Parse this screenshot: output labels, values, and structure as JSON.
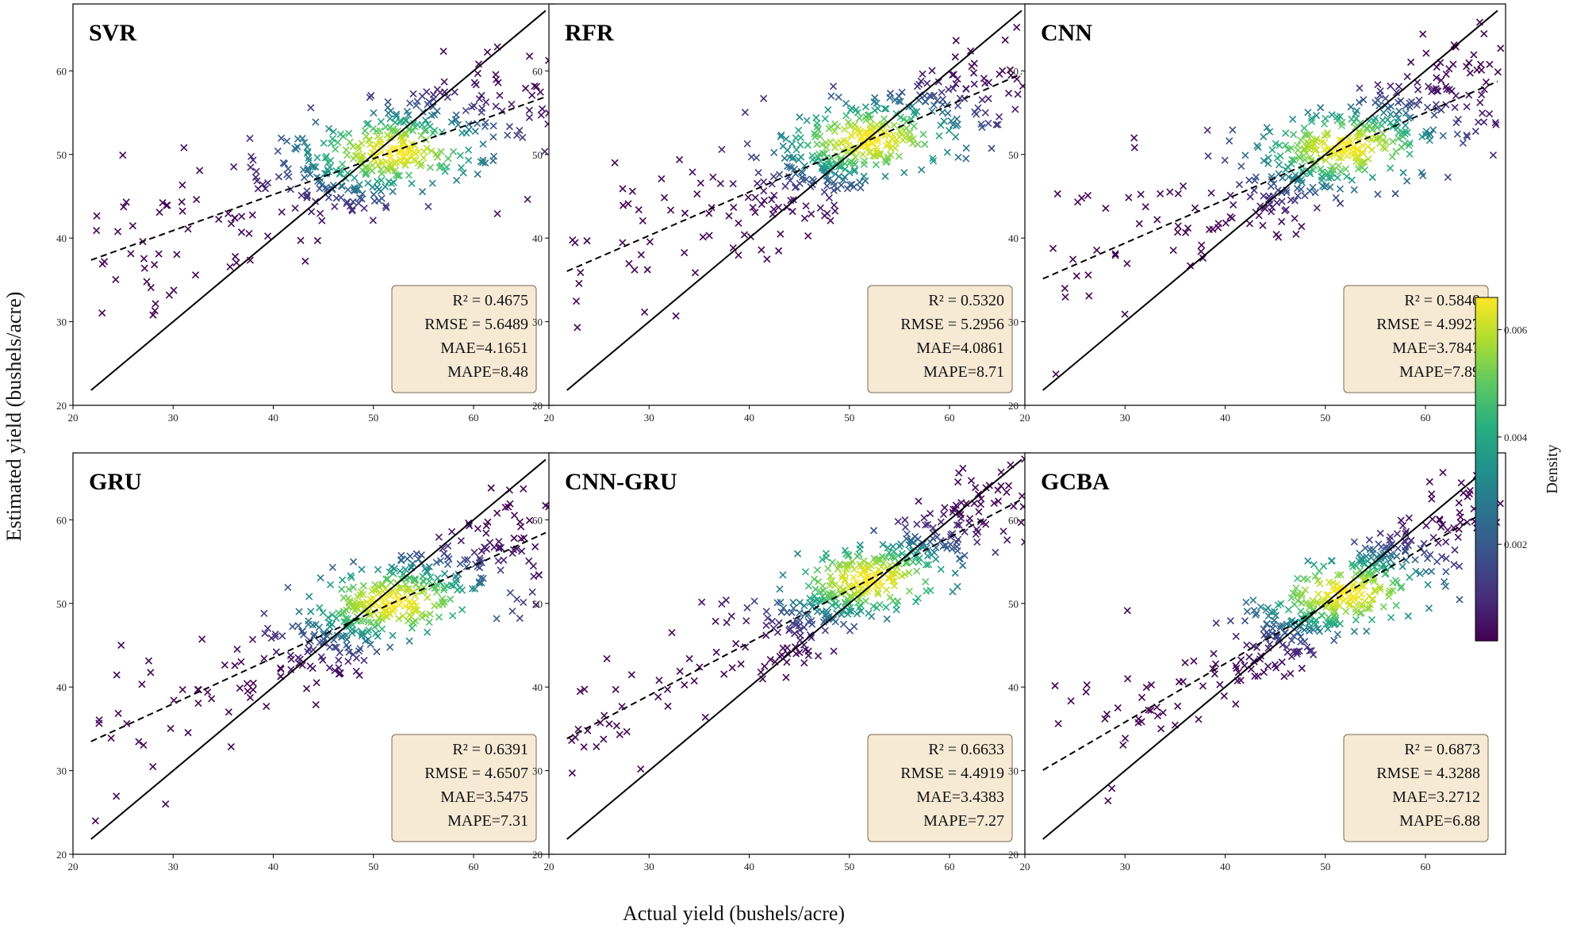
{
  "figure": {
    "xlabel": "Actual yield (bushels/acre)",
    "ylabel": "Estimated yield (bushels/acre)",
    "colorbar": {
      "label": "Density",
      "ticks": [
        "0.002",
        "0.004",
        "0.006"
      ],
      "tick_values": [
        0.002,
        0.004,
        0.006
      ],
      "range": [
        0.0002,
        0.0066
      ],
      "colormap": "viridis"
    }
  },
  "chart_data": [
    {
      "type": "scatter",
      "title": "SVR",
      "xlim": [
        20,
        68
      ],
      "ylim": [
        20,
        68
      ],
      "xticks": [
        20,
        30,
        40,
        50,
        60
      ],
      "yticks": [
        20,
        30,
        40,
        50,
        60
      ],
      "fit": {
        "slope": 0.43,
        "intercept": 28.0
      },
      "stats": {
        "r2": "R² = 0.4675",
        "rmse": "RMSE = 5.6489",
        "mae": "MAE=4.1651",
        "mape": "MAPE=8.48"
      },
      "marker": "x",
      "identity_line": true
    },
    {
      "type": "scatter",
      "title": "RFR",
      "xlim": [
        20,
        68
      ],
      "ylim": [
        20,
        68
      ],
      "xticks": [
        20,
        30,
        40,
        50,
        60
      ],
      "yticks": [
        20,
        30,
        40,
        50,
        60
      ],
      "fit": {
        "slope": 0.52,
        "intercept": 24.7
      },
      "stats": {
        "r2": "R² = 0.5320",
        "rmse": "RMSE = 5.2956",
        "mae": "MAE=4.0861",
        "mape": "MAPE=8.71"
      },
      "marker": "x",
      "identity_line": true
    },
    {
      "type": "scatter",
      "title": "CNN",
      "xlim": [
        20,
        68
      ],
      "ylim": [
        20,
        68
      ],
      "xticks": [
        20,
        30,
        40,
        50,
        60
      ],
      "yticks": [
        20,
        30,
        40,
        50,
        60
      ],
      "fit": {
        "slope": 0.52,
        "intercept": 23.8
      },
      "stats": {
        "r2": "R² = 0.5840",
        "rmse": "RMSE = 4.9927",
        "mae": "MAE=3.7847",
        "mape": "MAPE=7.89"
      },
      "marker": "x",
      "identity_line": true
    },
    {
      "type": "scatter",
      "title": "GRU",
      "xlim": [
        20,
        68
      ],
      "ylim": [
        20,
        68
      ],
      "xticks": [
        20,
        30,
        40,
        50,
        60
      ],
      "yticks": [
        20,
        30,
        40,
        50,
        60
      ],
      "fit": {
        "slope": 0.55,
        "intercept": 21.5
      },
      "stats": {
        "r2": "R² = 0.6391",
        "rmse": "RMSE = 4.6507",
        "mae": "MAE=3.5475",
        "mape": "MAPE=7.31"
      },
      "marker": "x",
      "identity_line": true
    },
    {
      "type": "scatter",
      "title": "CNN-GRU",
      "xlim": [
        20,
        68
      ],
      "ylim": [
        20,
        68
      ],
      "xticks": [
        20,
        30,
        40,
        50,
        60
      ],
      "yticks": [
        20,
        30,
        40,
        50,
        60
      ],
      "fit": {
        "slope": 0.63,
        "intercept": 20.1
      },
      "stats": {
        "r2": "R² = 0.6633",
        "rmse": "RMSE = 4.4919",
        "mae": "MAE=3.4383",
        "mape": "MAPE=7.27"
      },
      "marker": "x",
      "identity_line": true
    },
    {
      "type": "scatter",
      "title": "GCBA",
      "xlim": [
        20,
        68
      ],
      "ylim": [
        20,
        68
      ],
      "xticks": [
        20,
        30,
        40,
        50,
        60
      ],
      "yticks": [
        20,
        30,
        40,
        50,
        60
      ],
      "fit": {
        "slope": 0.7,
        "intercept": 14.8
      },
      "stats": {
        "r2": "R² = 0.6873",
        "rmse": "RMSE = 4.3288",
        "mae": "MAE=3.2712",
        "mape": "MAPE=6.88"
      },
      "marker": "x",
      "identity_line": true
    }
  ]
}
